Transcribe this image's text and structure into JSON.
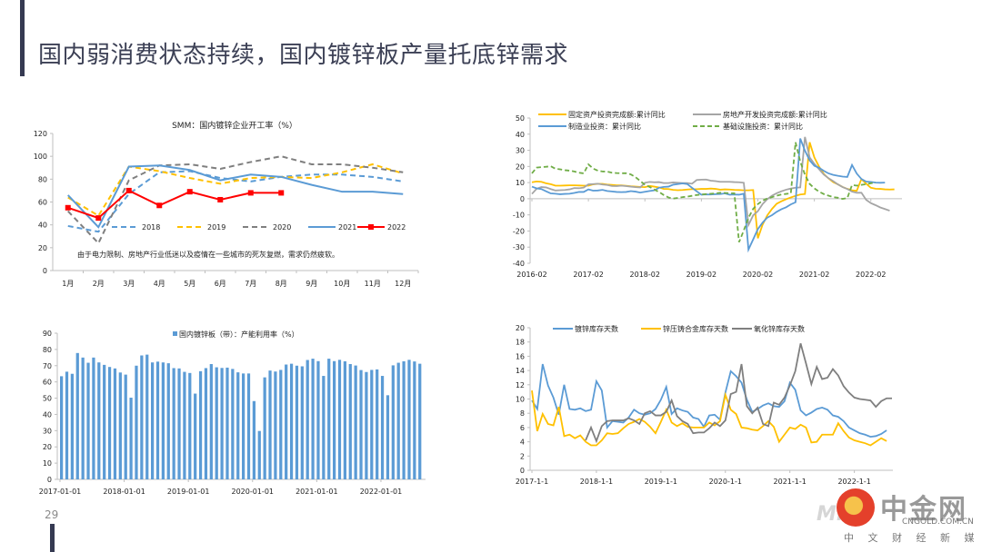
{
  "slide": {
    "title": "国内弱消费状态持续，国内镀锌板产量托底锌需求",
    "page_number": "29"
  },
  "logo": {
    "name": "中金网",
    "domain": "CNGOLD.COM.CN",
    "tagline": "中 文 财 经 新 媒 体",
    "watermark": "Mike"
  },
  "chart_data": [
    {
      "id": "galvanizing-operating-rate",
      "type": "line",
      "title": "SMM：国内镀锌企业开工率（%）",
      "categories": [
        "1月",
        "2月",
        "3月",
        "4月",
        "5月",
        "6月",
        "7月",
        "8月",
        "9月",
        "10月",
        "11月",
        "12月"
      ],
      "ylim": [
        0,
        120
      ],
      "yticks": [
        0,
        20,
        40,
        60,
        80,
        100,
        120
      ],
      "grid": false,
      "legend_position": "center",
      "annotation": "由于电力限制、房地产行业低迷以及疫情在一些城市的死灰复燃，需求仍然疲软。",
      "series": [
        {
          "name": "2018",
          "color": "#5b9bd5",
          "dash": true,
          "marker": false,
          "values": [
            39,
            34,
            67,
            86,
            87,
            81,
            78,
            82,
            84,
            84,
            82,
            78
          ]
        },
        {
          "name": "2019",
          "color": "#ffc000",
          "dash": true,
          "marker": false,
          "values": [
            64,
            48,
            91,
            87,
            81,
            76,
            81,
            82,
            81,
            86,
            93,
            85
          ]
        },
        {
          "name": "2020",
          "color": "#7f7f7f",
          "dash": true,
          "marker": false,
          "values": [
            52,
            24,
            79,
            92,
            93,
            89,
            95,
            100,
            93,
            93,
            90,
            86
          ]
        },
        {
          "name": "2021",
          "color": "#5b9bd5",
          "dash": false,
          "marker": false,
          "values": [
            66,
            38,
            91,
            92,
            88,
            79,
            84,
            82,
            75,
            69,
            69,
            67
          ]
        },
        {
          "name": "2022",
          "color": "#ff0000",
          "dash": false,
          "marker": true,
          "values": [
            55,
            46,
            70,
            57,
            69,
            62,
            68,
            68,
            null,
            null,
            null,
            null
          ]
        }
      ]
    },
    {
      "id": "fixed-asset-investment",
      "type": "line",
      "title": "",
      "xticks": [
        "2016-02",
        "2017-02",
        "2018-02",
        "2019-02",
        "2020-02",
        "2021-02",
        "2022-02"
      ],
      "ylim": [
        -40,
        50
      ],
      "yticks": [
        -40,
        -30,
        -20,
        -10,
        0,
        10,
        20,
        30,
        40,
        50
      ],
      "grid": false,
      "legend_position": "top",
      "x_start": "2016-02",
      "series": [
        {
          "name": "固定资产投资完成额:累计同比",
          "color": "#ffc000",
          "dash": false,
          "values": [
            10.2,
            10.7,
            10.5,
            9.6,
            9.0,
            8.1,
            8.1,
            8.2,
            8.3,
            8.3,
            8.2,
            8.1,
            8.1,
            8.9,
            9.2,
            9.2,
            8.8,
            8.6,
            8.3,
            8.3,
            8.0,
            7.7,
            7.5,
            7.3,
            7.2,
            7.9,
            7.5,
            7.0,
            6.1,
            6.0,
            5.5,
            5.3,
            5.4,
            5.7,
            5.9,
            5.9,
            6.1,
            6.1,
            6.3,
            6.1,
            5.6,
            5.8,
            5.7,
            5.5,
            5.4,
            5.2,
            5.2,
            5.4,
            -24.5,
            -16.1,
            -10.3,
            -6.3,
            -3.1,
            -1.6,
            -0.3,
            0.8,
            1.8,
            2.6,
            2.9,
            35.0,
            25.6,
            19.9,
            15.4,
            12.6,
            10.3,
            8.9,
            7.3,
            6.1,
            5.2,
            4.9,
            12.2,
            9.3,
            6.8,
            6.2,
            6.1,
            5.8,
            5.7,
            5.8
          ]
        },
        {
          "name": "房地产开发投资完成额:累计同比",
          "color": "#a5a5a5",
          "dash": false,
          "values": [
            3.0,
            6.2,
            7.2,
            7.0,
            6.0,
            5.1,
            5.3,
            5.4,
            5.8,
            6.6,
            6.5,
            6.9,
            8.9,
            9.1,
            9.3,
            8.8,
            8.5,
            7.9,
            7.8,
            8.1,
            7.8,
            7.5,
            7.2,
            7.0,
            9.9,
            10.4,
            10.2,
            10.3,
            9.7,
            9.7,
            10.1,
            9.9,
            9.7,
            9.7,
            9.3,
            11.6,
            11.8,
            11.9,
            11.2,
            10.9,
            10.5,
            10.5,
            10.5,
            10.3,
            10.2,
            9.9,
            -16.3,
            -10.3,
            -7.7,
            -3.3,
            -0.3,
            1.9,
            3.4,
            4.6,
            5.6,
            6.3,
            6.8,
            7.0,
            38.3,
            25.6,
            21.6,
            18.3,
            15.0,
            12.7,
            10.9,
            8.9,
            7.2,
            6.0,
            4.4,
            3.7,
            3.7,
            -0.7,
            -2.7,
            -4.0,
            -5.4,
            -6.4,
            -7.4
          ]
        },
        {
          "name": "制造业投资：累计同比",
          "color": "#5b9bd5",
          "dash": false,
          "values": [
            7.5,
            6.4,
            6.0,
            4.6,
            3.3,
            3.1,
            2.8,
            3.0,
            3.1,
            3.6,
            4.2,
            4.2,
            5.8,
            5.0,
            5.1,
            5.5,
            4.8,
            4.5,
            4.2,
            4.1,
            4.2,
            4.7,
            4.4,
            3.8,
            4.3,
            4.8,
            5.2,
            6.8,
            7.3,
            7.5,
            8.7,
            9.1,
            9.5,
            9.1,
            6.8,
            4.6,
            2.5,
            2.7,
            2.6,
            2.8,
            2.9,
            3.3,
            2.5,
            2.6,
            2.5,
            3.1,
            -31.5,
            -25.2,
            -18.8,
            -14.8,
            -11.7,
            -10.2,
            -8.1,
            -6.5,
            -5.3,
            -3.5,
            -2.2,
            37.3,
            29.8,
            23.8,
            20.4,
            19.2,
            17.3,
            15.7,
            14.8,
            14.2,
            13.7,
            13.5,
            20.9,
            15.6,
            12.2,
            10.6,
            10.4,
            10.0,
            9.9,
            10.0
          ]
        },
        {
          "name": "基础设施投资：累计同比",
          "color": "#70ad47",
          "dash": true,
          "values": [
            15.7,
            19.3,
            19.6,
            19.8,
            20.1,
            18.6,
            18.2,
            17.7,
            17.4,
            16.9,
            16.1,
            15.7,
            21.3,
            18.7,
            17.4,
            16.9,
            16.8,
            16.1,
            15.9,
            15.8,
            15.8,
            15.1,
            13.4,
            11.0,
            8.7,
            7.3,
            5.7,
            4.2,
            2.3,
            0.8,
            0.1,
            0.5,
            1.0,
            1.3,
            1.8,
            2.3,
            2.6,
            2.9,
            3.1,
            3.3,
            3.7,
            3.6,
            3.4,
            3.4,
            -26.9,
            -19.7,
            -11.8,
            -6.3,
            -3.3,
            -1.2,
            0.2,
            1.0,
            1.9,
            2.6,
            3.0,
            3.3,
            35.0,
            23.1,
            14.9,
            9.2,
            6.4,
            4.4,
            2.9,
            1.9,
            1.0,
            0.6,
            -0.1,
            0.4,
            8.5,
            8.1,
            8.6,
            9.0,
            9.6,
            10.0
          ]
        }
      ]
    },
    {
      "id": "galvanized-sheet-capacity-utilization",
      "type": "bar",
      "title": "国内镀锌板（带）：产能利用率（%）",
      "legend": [
        "国内镀锌板（带）：产能利用率（%）"
      ],
      "xticks": [
        "2017-01-01",
        "2018-01-01",
        "2019-01-01",
        "2020-01-01",
        "2021-01-01",
        "2022-01-01"
      ],
      "ylim": [
        0,
        90
      ],
      "yticks": [
        0,
        10,
        20,
        30,
        40,
        50,
        60,
        70,
        80,
        90
      ],
      "grid": false,
      "legend_position": "top",
      "series": [
        {
          "name": "国内镀锌板（带）：产能利用率（%）",
          "color": "#5b9bd5",
          "values": [
            63.5,
            66.3,
            65,
            77.8,
            75,
            71.8,
            75,
            72,
            70.5,
            69.2,
            68.3,
            65.8,
            64.5,
            50.3,
            70,
            76.3,
            76.8,
            72,
            72.5,
            72,
            71.5,
            68.5,
            68.3,
            66.2,
            65.5,
            52.8,
            66.6,
            68.5,
            71,
            69,
            68.6,
            68.8,
            68,
            65.9,
            65.2,
            65.2,
            48.2,
            29.8,
            62.8,
            67,
            66.4,
            67.4,
            70.7,
            71.2,
            70,
            69.6,
            73.5,
            74.3,
            72.8,
            63.7,
            74.3,
            72.8,
            73.6,
            72.7,
            71,
            70.1,
            67.3,
            66.1,
            67.4,
            67.7,
            63.7,
            51.8,
            70.2,
            71.8,
            72.7,
            73.6,
            72.6,
            71.2
          ]
        }
      ]
    },
    {
      "id": "inventory-days",
      "type": "line",
      "title": "",
      "xticks": [
        "2017-1-1",
        "2018-1-1",
        "2019-1-1",
        "2020-1-1",
        "2021-1-1",
        "2022-1-1"
      ],
      "ylim": [
        0,
        20
      ],
      "yticks": [
        0,
        2,
        4,
        6,
        8,
        10,
        12,
        14,
        16,
        18,
        20
      ],
      "grid": false,
      "legend_position": "top",
      "series": [
        {
          "name": "镀锌库存天数",
          "color": "#5b9bd5",
          "start_index": 0,
          "values": [
            9.8,
            8.6,
            14.9,
            11.9,
            10.2,
            7.8,
            12,
            8.6,
            8.5,
            8.7,
            8.3,
            8.5,
            12.5,
            11.2,
            6,
            6.9,
            6.8,
            6.7,
            7.4,
            8.5,
            8,
            7.8,
            8,
            8.6,
            9.9,
            11.7,
            7.9,
            8.7,
            8.4,
            8.2,
            7.4,
            7.2,
            6.1,
            7.7,
            7.8,
            7.1,
            10.9,
            13.9,
            13.2,
            12.3,
            9.9,
            8.2,
            8.6,
            9.1,
            9.4,
            9,
            8.9,
            9.7,
            12.3,
            11.3,
            8.4,
            7.7,
            8.1,
            8.6,
            8.8,
            8.5,
            7.7,
            7.5,
            6.9,
            6,
            5.6,
            5.2,
            5,
            4.7,
            4.8,
            5.1,
            5.6
          ]
        },
        {
          "name": "锌压铸合金库存天数",
          "color": "#ffc000",
          "start_index": 0,
          "values": [
            11.2,
            5.5,
            7.9,
            6.5,
            6.3,
            8.9,
            4.8,
            5,
            4.5,
            4.9,
            4,
            3.5,
            3.5,
            4.2,
            5.2,
            5.1,
            5.2,
            5.9,
            6.5,
            6.8,
            7.2,
            6.8,
            6.1,
            5.2,
            6.8,
            8.5,
            6.7,
            6.2,
            6.6,
            6.1,
            6,
            6,
            6,
            6.7,
            6.3,
            6.9,
            10.6,
            8.5,
            7.9,
            6,
            5.9,
            5.7,
            5.6,
            6.2,
            6.9,
            6.1,
            4,
            5,
            6,
            5.8,
            6.4,
            6,
            3.9,
            4,
            5,
            5,
            5,
            6.6,
            5.5,
            4.6,
            4.2,
            4,
            3.8,
            3.5,
            4,
            4.5,
            4.1
          ]
        },
        {
          "name": "氧化锌库存天数",
          "color": "#7f7f7f",
          "start_index": 10,
          "values": [
            4.2,
            6,
            4.1,
            6.2,
            6.9,
            7,
            7,
            7,
            7.3,
            7,
            6.5,
            8,
            8.3,
            7.7,
            7.7,
            8.2,
            9.8,
            7.6,
            6.9,
            6.5,
            5.2,
            5.3,
            5.3,
            5.9,
            6.7,
            6.2,
            7,
            10.7,
            11,
            14.9,
            9,
            8,
            8.8,
            6.5,
            6.2,
            9.5,
            9.2,
            10.2,
            11.9,
            13.9,
            17.8,
            15,
            12.1,
            14.5,
            12.8,
            13,
            14.2,
            13.3,
            11.8,
            10.9,
            10.2,
            10,
            9.9,
            9.8,
            8.9,
            9.7,
            10.1,
            10.1
          ]
        }
      ]
    }
  ]
}
